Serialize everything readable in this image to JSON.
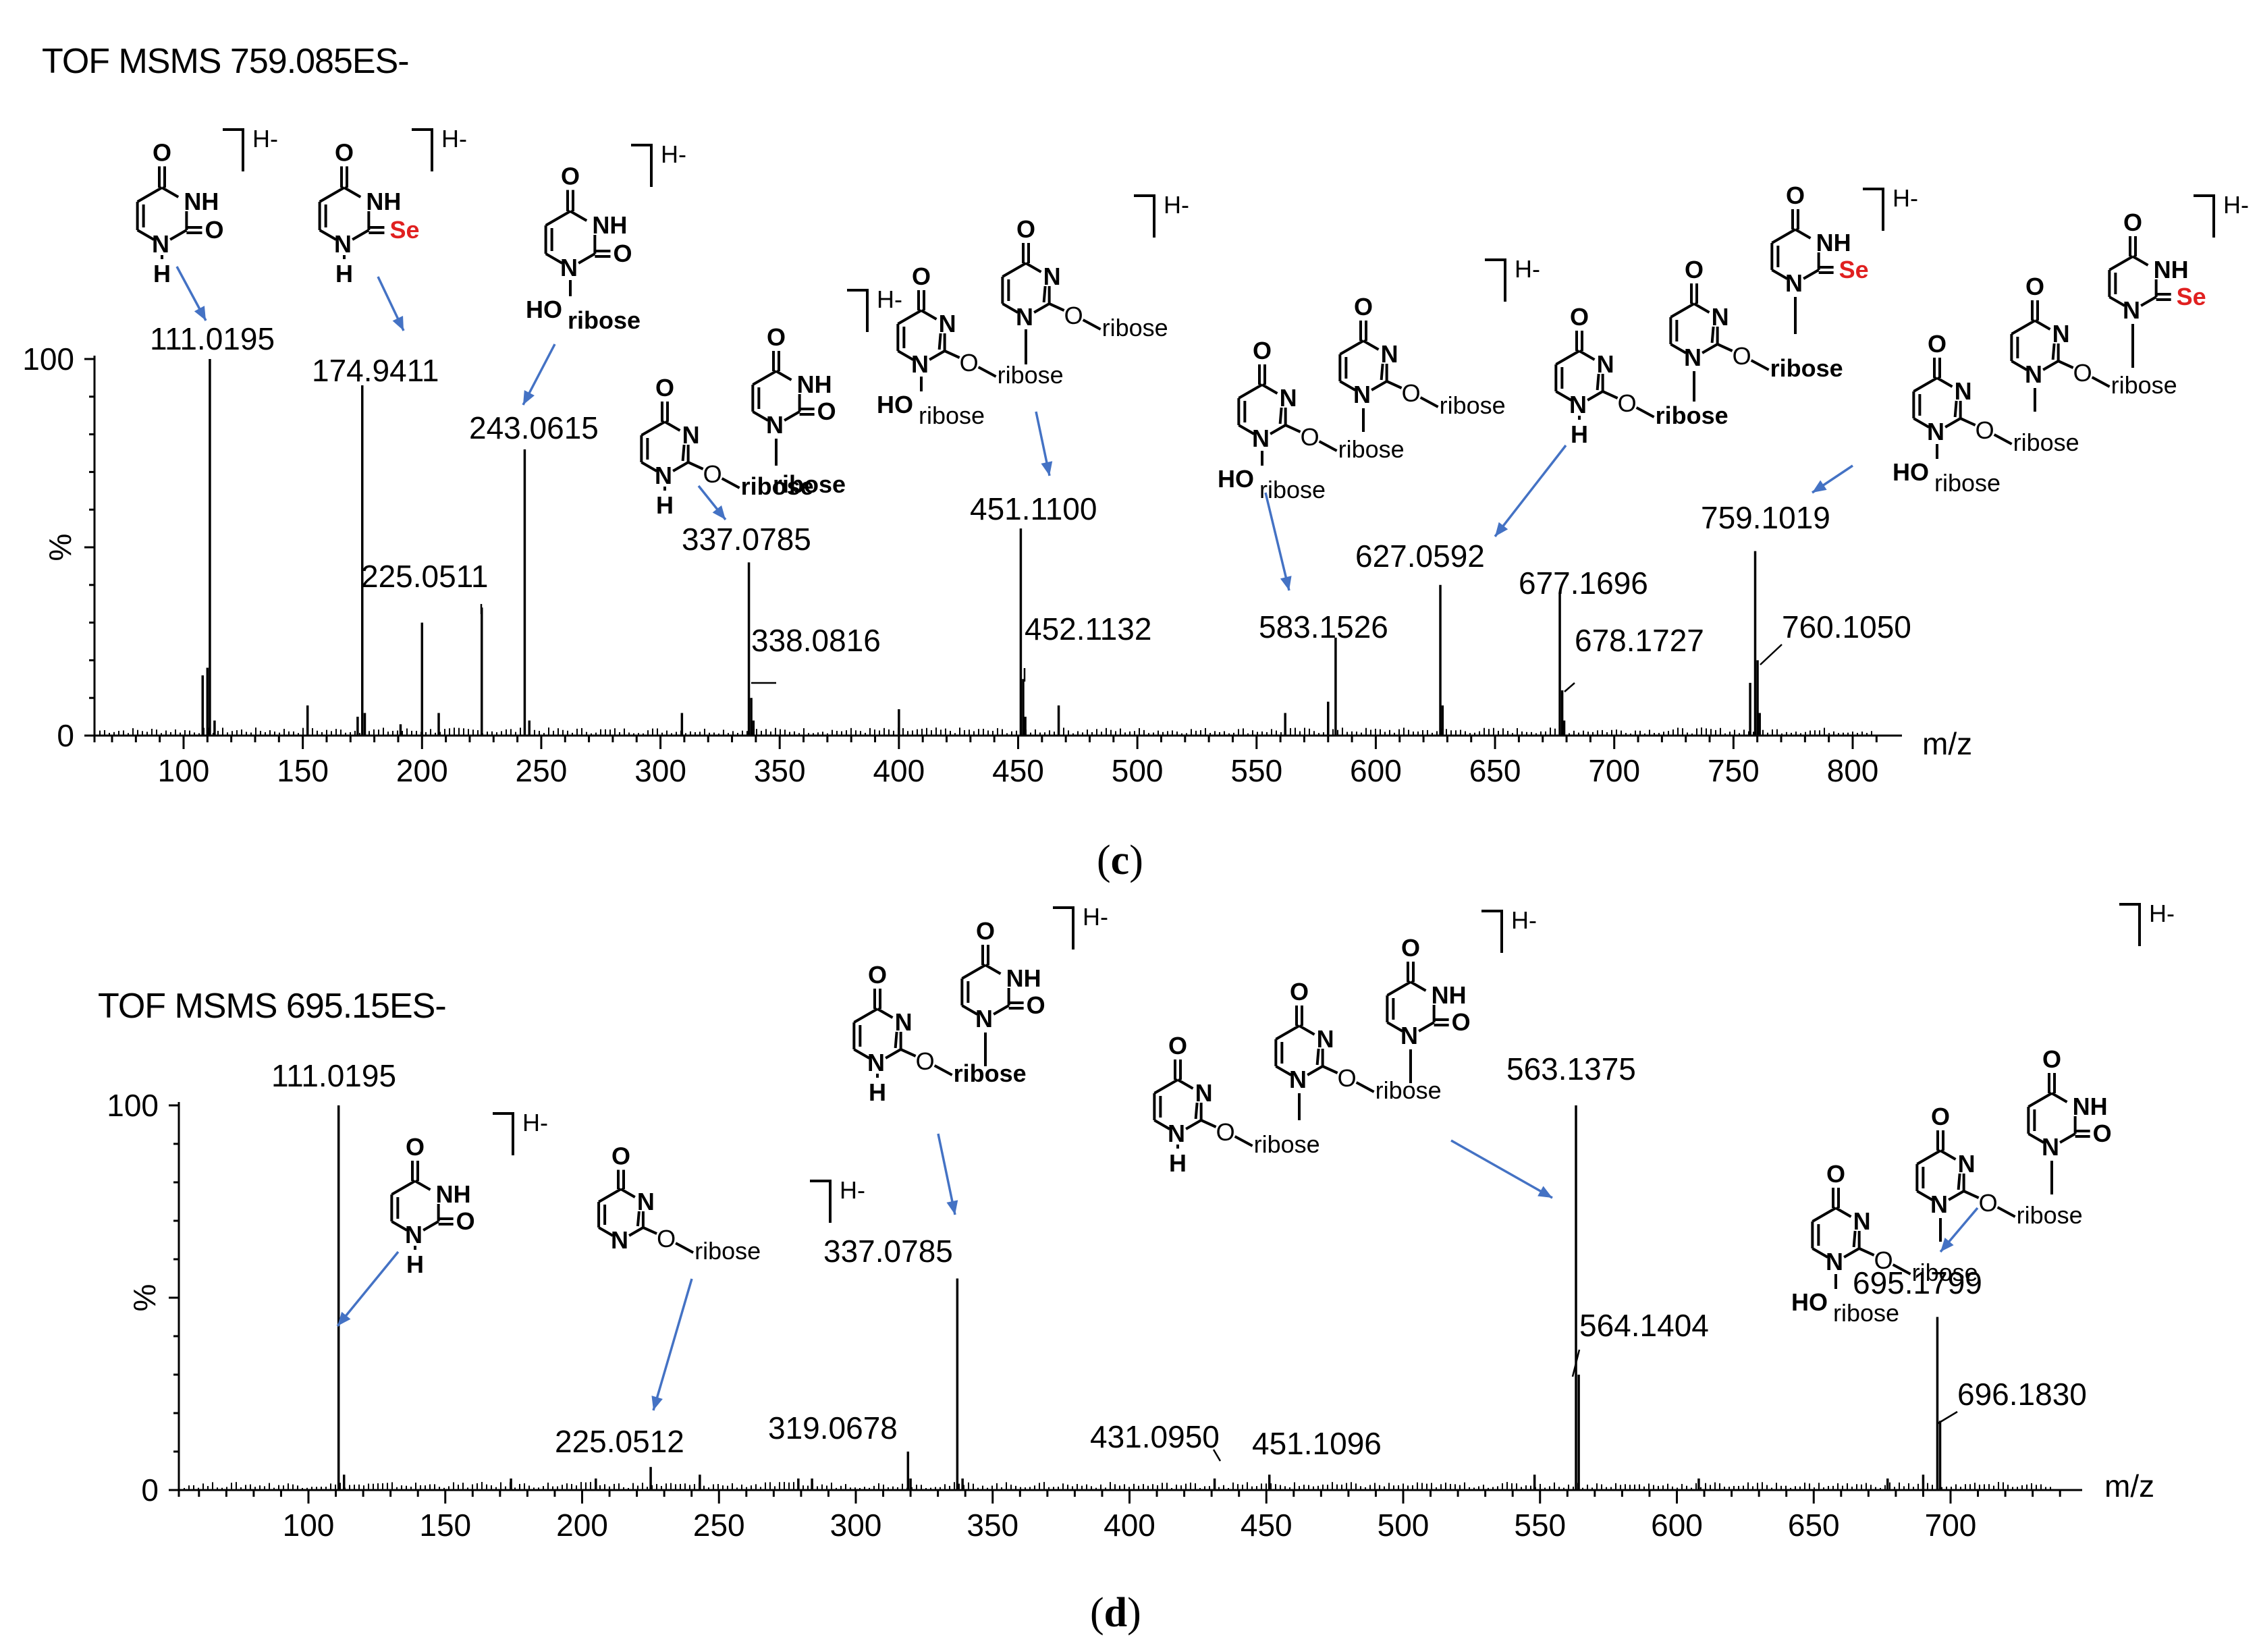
{
  "chart_data": [
    {
      "type": "bar",
      "title": "TOF MSMS 759.085ES-",
      "caption": "c",
      "xlabel": "m/z",
      "ylabel": "%",
      "xlim": [
        60,
        830
      ],
      "ylim": [
        0,
        100
      ],
      "xticks": [
        100,
        150,
        200,
        250,
        300,
        350,
        400,
        450,
        500,
        550,
        600,
        650,
        700,
        750,
        800
      ],
      "yticks": [
        {
          "value": 0,
          "label": "0"
        },
        {
          "value": 50,
          "label": "%"
        },
        {
          "value": 100,
          "label": "100"
        }
      ],
      "peaks": [
        {
          "mz": 111.0195,
          "intensity": 100,
          "label": "111.0195"
        },
        {
          "mz": 174.9411,
          "intensity": 93,
          "label": "174.9411"
        },
        {
          "mz": 225.0511,
          "intensity": 34,
          "label": "225.0511"
        },
        {
          "mz": 243.0615,
          "intensity": 76,
          "label": "243.0615"
        },
        {
          "mz": 337.0785,
          "intensity": 46,
          "label": "337.0785"
        },
        {
          "mz": 338.0816,
          "intensity": 10,
          "label": "338.0816"
        },
        {
          "mz": 451.11,
          "intensity": 55,
          "label": "451.1100"
        },
        {
          "mz": 452.1132,
          "intensity": 15,
          "label": "452.1132"
        },
        {
          "mz": 583.1526,
          "intensity": 26,
          "label": "583.1526"
        },
        {
          "mz": 627.0592,
          "intensity": 40,
          "label": "627.0592"
        },
        {
          "mz": 677.1696,
          "intensity": 38,
          "label": "677.1696"
        },
        {
          "mz": 678.1727,
          "intensity": 12,
          "label": "678.1727"
        },
        {
          "mz": 759.1019,
          "intensity": 49,
          "label": "759.1019"
        },
        {
          "mz": 760.105,
          "intensity": 20,
          "label": "760.1050"
        }
      ],
      "minor_peaks": [
        {
          "mz": 108,
          "intensity": 16
        },
        {
          "mz": 110,
          "intensity": 18
        },
        {
          "mz": 113,
          "intensity": 4
        },
        {
          "mz": 152,
          "intensity": 8
        },
        {
          "mz": 173,
          "intensity": 5
        },
        {
          "mz": 176,
          "intensity": 6
        },
        {
          "mz": 191,
          "intensity": 3
        },
        {
          "mz": 200,
          "intensity": 30
        },
        {
          "mz": 207,
          "intensity": 6
        },
        {
          "mz": 245,
          "intensity": 4
        },
        {
          "mz": 309,
          "intensity": 6
        },
        {
          "mz": 339,
          "intensity": 4
        },
        {
          "mz": 400,
          "intensity": 7
        },
        {
          "mz": 453,
          "intensity": 5
        },
        {
          "mz": 467,
          "intensity": 8
        },
        {
          "mz": 562,
          "intensity": 6
        },
        {
          "mz": 580,
          "intensity": 9
        },
        {
          "mz": 628,
          "intensity": 8
        },
        {
          "mz": 679,
          "intensity": 4
        },
        {
          "mz": 757,
          "intensity": 14
        },
        {
          "mz": 761,
          "intensity": 6
        }
      ]
    },
    {
      "type": "bar",
      "title": "TOF MSMS 695.15ES-",
      "caption": "d",
      "xlabel": "m/z",
      "ylabel": "%",
      "xlim": [
        50,
        750
      ],
      "ylim": [
        0,
        100
      ],
      "xticks": [
        100,
        150,
        200,
        250,
        300,
        350,
        400,
        450,
        500,
        550,
        600,
        650,
        700
      ],
      "yticks": [
        {
          "value": 0,
          "label": "0"
        },
        {
          "value": 50,
          "label": "%"
        },
        {
          "value": 100,
          "label": "100"
        }
      ],
      "peaks": [
        {
          "mz": 111.0195,
          "intensity": 100,
          "label": "111.0195"
        },
        {
          "mz": 225.0512,
          "intensity": 6,
          "label": "225.0512"
        },
        {
          "mz": 319.0678,
          "intensity": 10,
          "label": "319.0678"
        },
        {
          "mz": 337.0785,
          "intensity": 55,
          "label": "337.0785"
        },
        {
          "mz": 431.095,
          "intensity": 3,
          "label": "431.0950"
        },
        {
          "mz": 451.1096,
          "intensity": 4,
          "label": "451.1096"
        },
        {
          "mz": 563.1375,
          "intensity": 100,
          "label": "563.1375"
        },
        {
          "mz": 564.1404,
          "intensity": 30,
          "label": "564.1404"
        },
        {
          "mz": 695.1799,
          "intensity": 45,
          "label": "695.1799"
        },
        {
          "mz": 696.183,
          "intensity": 18,
          "label": "696.1830"
        }
      ],
      "minor_peaks": [
        {
          "mz": 113,
          "intensity": 4
        },
        {
          "mz": 174,
          "intensity": 3
        },
        {
          "mz": 205,
          "intensity": 3
        },
        {
          "mz": 243,
          "intensity": 4
        },
        {
          "mz": 279,
          "intensity": 3
        },
        {
          "mz": 284,
          "intensity": 3
        },
        {
          "mz": 320,
          "intensity": 3
        },
        {
          "mz": 339,
          "intensity": 3
        },
        {
          "mz": 548,
          "intensity": 4
        },
        {
          "mz": 608,
          "intensity": 3
        },
        {
          "mz": 677,
          "intensity": 3
        },
        {
          "mz": 690,
          "intensity": 4
        }
      ]
    }
  ],
  "structure_labels": {
    "o": "O",
    "n": "N",
    "nh": "NH",
    "h": "H",
    "se": "Se",
    "ribose": "ribose",
    "ho": "HO",
    "charge": "H-"
  }
}
